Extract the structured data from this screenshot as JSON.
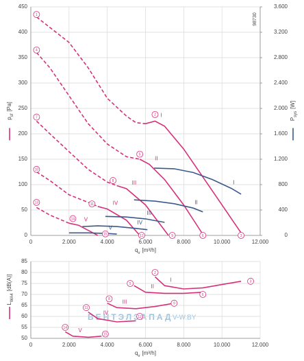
{
  "chart_data": [
    {
      "type": "line",
      "code": "98730",
      "xlabel": {
        "main": "q",
        "sub": "v",
        "unit": "[m³/h]"
      },
      "ylabel": {
        "main": "p",
        "sub": "sf",
        "unit": "[Pa]"
      },
      "y2label": {
        "main": "P",
        "sub": "sys",
        "unit": "[W]"
      },
      "xlim": [
        0,
        12000
      ],
      "xticks": [
        0,
        {
          "value": 2000,
          "label": "2.000"
        },
        {
          "value": 4000,
          "label": "4.000"
        },
        {
          "value": 6000,
          "label": "6.000"
        },
        {
          "value": 8000,
          "label": "8.000"
        },
        {
          "value": 10000,
          "label": "10.000"
        },
        {
          "value": 12000,
          "label": "12.000"
        }
      ],
      "ylim": [
        0,
        450
      ],
      "yticks": [
        0,
        50,
        100,
        150,
        200,
        250,
        300,
        350,
        400,
        450
      ],
      "y2lim": [
        0,
        3600
      ],
      "y2ticks": [
        0,
        400,
        800,
        {
          "value": 1200,
          "label": "1.200"
        },
        {
          "value": 1600,
          "label": "1.600"
        },
        {
          "value": 2000,
          "label": "2.000"
        },
        {
          "value": 2400,
          "label": "2.400"
        },
        {
          "value": 2800,
          "label": "2.800"
        },
        {
          "value": 3200,
          "label": "3.200"
        },
        {
          "value": 3600,
          "label": "3.600"
        }
      ],
      "grid": true,
      "series": [
        {
          "name": "I",
          "color": "#d6307a",
          "dash_x": [
            300,
            2000,
            3000,
            4000,
            5000,
            5500,
            6000
          ],
          "dash_values": [
            430,
            380,
            330,
            270,
            235,
            222,
            220
          ],
          "x": [
            6000,
            6500,
            7000,
            8000,
            9000,
            10000,
            11000
          ],
          "values": [
            220,
            225,
            215,
            170,
            115,
            60,
            5
          ]
        },
        {
          "name": "II",
          "color": "#d6307a",
          "dash_x": [
            300,
            1000,
            2000,
            3000,
            4000,
            5000,
            5700
          ],
          "dash_values": [
            360,
            330,
            275,
            220,
            180,
            155,
            150
          ],
          "x": [
            5700,
            6200,
            7000,
            8000,
            9000
          ],
          "values": [
            150,
            140,
            110,
            60,
            2
          ]
        },
        {
          "name": "III",
          "color": "#d6307a",
          "dash_x": [
            300,
            1000,
            2000,
            3000,
            4000,
            4500
          ],
          "dash_values": [
            225,
            200,
            165,
            130,
            105,
            98
          ],
          "x": [
            4500,
            5000,
            6000,
            7000,
            7200
          ],
          "values": [
            98,
            92,
            60,
            10,
            0
          ]
        },
        {
          "name": "IV",
          "color": "#d6307a",
          "dash_x": [
            300,
            1000,
            2000,
            3000,
            3500
          ],
          "dash_values": [
            125,
            108,
            80,
            65,
            57
          ],
          "x": [
            3500,
            4000,
            5000,
            5700
          ],
          "values": [
            57,
            52,
            30,
            0
          ]
        },
        {
          "name": "V",
          "color": "#d6307a",
          "dash_x": [
            300,
            1000,
            2000
          ],
          "dash_values": [
            55,
            40,
            24
          ],
          "x": [
            2000,
            2500,
            3000,
            3500
          ],
          "values": [
            24,
            20,
            10,
            0
          ]
        },
        {
          "name": "I",
          "axis": "y2",
          "color": "#3b5a8a",
          "x": [
            6450,
            7500,
            8500,
            9500,
            10500,
            11000
          ],
          "values": [
            1060,
            1050,
            990,
            880,
            740,
            650
          ]
        },
        {
          "name": "II",
          "axis": "y2",
          "color": "#3b5a8a",
          "x": [
            5400,
            6500,
            7500,
            8500,
            9000
          ],
          "values": [
            560,
            540,
            500,
            430,
            370
          ]
        },
        {
          "name": "III",
          "axis": "y2",
          "color": "#3b5a8a",
          "x": [
            3900,
            5000,
            6000,
            7000
          ],
          "values": [
            300,
            290,
            260,
            205
          ]
        },
        {
          "name": "IV",
          "axis": "y2",
          "color": "#3b5a8a",
          "x": [
            2700,
            3500,
            4500,
            5500,
            6100
          ],
          "values": [
            140,
            150,
            140,
            110,
            90
          ]
        },
        {
          "name": "V",
          "axis": "y2",
          "color": "#3b5a8a",
          "x": [
            2000,
            3000,
            4000,
            4500
          ],
          "values": [
            40,
            40,
            30,
            20
          ]
        }
      ],
      "markers": [
        {
          "label": "1",
          "x": 300,
          "y": 435
        },
        {
          "label": "2",
          "x": 6500,
          "y": 238
        },
        {
          "label": "3",
          "x": 11000,
          "y": 0
        },
        {
          "label": "4",
          "x": 300,
          "y": 365
        },
        {
          "label": "5",
          "x": 5700,
          "y": 160
        },
        {
          "label": "6",
          "x": 9000,
          "y": 0
        },
        {
          "label": "7",
          "x": 300,
          "y": 233
        },
        {
          "label": "8",
          "x": 4300,
          "y": 108
        },
        {
          "label": "9",
          "x": 7400,
          "y": 0
        },
        {
          "label": "10",
          "x": 300,
          "y": 130
        },
        {
          "label": "11",
          "x": 3200,
          "y": 62
        },
        {
          "label": "12",
          "x": 5800,
          "y": 0
        },
        {
          "label": "13",
          "x": 300,
          "y": 65
        },
        {
          "label": "14",
          "x": 2200,
          "y": 33
        },
        {
          "label": "15",
          "x": 3900,
          "y": 3
        }
      ]
    },
    {
      "type": "line",
      "xlabel": {
        "main": "q",
        "sub": "v",
        "unit": "[m³/h]"
      },
      "ylabel": {
        "main": "L",
        "sub": "WA4",
        "unit": "[dB(A)]"
      },
      "xlim": [
        0,
        12000
      ],
      "xticks": [
        0,
        {
          "value": 2000,
          "label": "2.000"
        },
        {
          "value": 4000,
          "label": "4.000"
        },
        {
          "value": 6000,
          "label": "6.000"
        },
        {
          "value": 8000,
          "label": "8.000"
        },
        {
          "value": 10000,
          "label": "10.000"
        },
        {
          "value": 12000,
          "label": "12.000"
        }
      ],
      "ylim": [
        50,
        85
      ],
      "yticks": [
        50,
        55,
        60,
        65,
        70,
        75,
        80,
        85
      ],
      "grid": true,
      "series": [
        {
          "name": "I",
          "color": "#d6307a",
          "x": [
            6500,
            7000,
            8000,
            9000,
            10000,
            11000
          ],
          "values": [
            78,
            74,
            72.5,
            73,
            74.5,
            76
          ]
        },
        {
          "name": "II",
          "color": "#d6307a",
          "x": [
            5400,
            6000,
            7000,
            8000,
            9000
          ],
          "values": [
            74,
            71,
            70.5,
            70.5,
            71
          ]
        },
        {
          "name": "III",
          "color": "#d6307a",
          "x": [
            4000,
            4500,
            5500,
            6500,
            7500
          ],
          "values": [
            66,
            64,
            63.5,
            64.5,
            66
          ]
        },
        {
          "name": "IV",
          "color": "#d6307a",
          "x": [
            3000,
            3500,
            4500,
            5500
          ],
          "values": [
            62,
            59,
            57.5,
            58
          ]
        },
        {
          "name": "V",
          "color": "#d6307a",
          "x": [
            1800,
            2200,
            3000,
            3700
          ],
          "values": [
            53,
            51,
            50.5,
            51
          ]
        }
      ],
      "markers": [
        {
          "label": "2",
          "x": 6500,
          "y": 80
        },
        {
          "label": "3",
          "x": 11500,
          "y": 76
        },
        {
          "label": "5",
          "x": 5200,
          "y": 75
        },
        {
          "label": "6",
          "x": 9000,
          "y": 70
        },
        {
          "label": "8",
          "x": 4100,
          "y": 68
        },
        {
          "label": "9",
          "x": 7500,
          "y": 66
        },
        {
          "label": "11",
          "x": 2900,
          "y": 64
        },
        {
          "label": "12",
          "x": 5700,
          "y": 60
        },
        {
          "label": "14",
          "x": 1800,
          "y": 55
        },
        {
          "label": "15",
          "x": 3900,
          "y": 52
        }
      ]
    }
  ],
  "watermark": {
    "brand": "ВЕНТЭЛЗАПАД",
    "site": "V-W.BY"
  }
}
